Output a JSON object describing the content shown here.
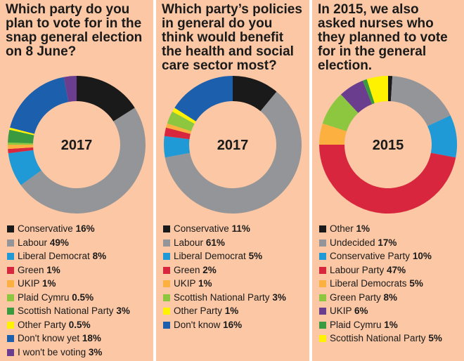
{
  "chart_data": [
    {
      "type": "pie",
      "title": "Which party do you plan to vote for in the snap general election on 8 June?",
      "center_label": "2017",
      "categories": [
        "Conservative",
        "Labour",
        "Liberal Democrat",
        "Green",
        "UKIP",
        "Plaid Cymru",
        "Scottish National Party",
        "Other Party",
        "Don't know yet",
        "I won't be voting"
      ],
      "values": [
        16,
        49,
        8,
        1,
        1,
        0.5,
        3,
        0.5,
        18,
        3
      ],
      "value_labels": [
        "16%",
        "49%",
        "8%",
        "1%",
        "1%",
        "0.5%",
        "3%",
        "0.5%",
        "18%",
        "3%"
      ],
      "colors": [
        "#1a1a1a",
        "#939598",
        "#1f9ad6",
        "#d7263d",
        "#fbb040",
        "#8dc63f",
        "#3a9a3f",
        "#fff200",
        "#1b5fad",
        "#6a3d8f"
      ]
    },
    {
      "type": "pie",
      "title": "Which party’s policies in general do you think would benefit the health and social care sector most?",
      "center_label": "2017",
      "categories": [
        "Conservative",
        "Labour",
        "Liberal Democrat",
        "Green",
        "UKIP",
        "Scottish National Party",
        "Other Party",
        "Don't know"
      ],
      "values": [
        11,
        61,
        5,
        2,
        1,
        3,
        1,
        16
      ],
      "value_labels": [
        "11%",
        "61%",
        "5%",
        "2%",
        "1%",
        "3%",
        "1%",
        "16%"
      ],
      "colors": [
        "#1a1a1a",
        "#939598",
        "#1f9ad6",
        "#d7263d",
        "#fbb040",
        "#8dc63f",
        "#fff200",
        "#1b5fad"
      ]
    },
    {
      "type": "pie",
      "title": "In 2015, we also asked nurses who they planned to vote for in the general election.",
      "center_label": "2015",
      "categories": [
        "Other",
        "Undecided",
        "Conservative Party",
        "Labour Party",
        "Liberal Democrats",
        "Green Party",
        "UKIP",
        "Plaid Cymru",
        "Scottish National Party"
      ],
      "values": [
        1,
        17,
        10,
        47,
        5,
        8,
        6,
        1,
        5
      ],
      "value_labels": [
        "1%",
        "17%",
        "10%",
        "47%",
        "5%",
        "8%",
        "6%",
        "1%",
        "5%"
      ],
      "colors": [
        "#1a1a1a",
        "#939598",
        "#1f9ad6",
        "#d7263d",
        "#fbb040",
        "#8dc63f",
        "#6a3d8f",
        "#3a9a3f",
        "#fff200"
      ]
    }
  ]
}
